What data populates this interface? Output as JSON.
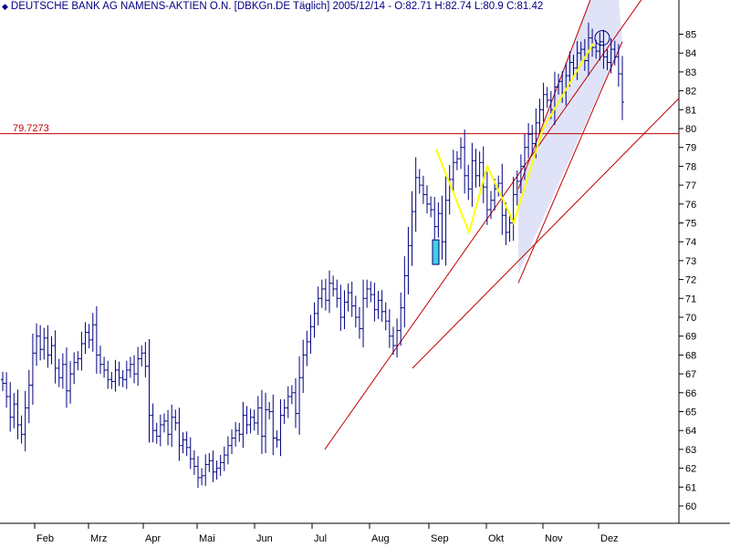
{
  "header": {
    "icon": "diamond-icon",
    "text": "DEUTSCHE BANK AG NAMENS-AKTIEN O.N. [DBKGn.DE  Täglich] 2005/12/14 - O:82.71 H:82.74 L:80.9 C:81.42"
  },
  "chart_data": {
    "type": "bar",
    "subtype": "ohlc",
    "symbol": "DBKGn.DE",
    "interval": "Täglich",
    "last_bar": {
      "date": "2005/12/14",
      "open": 82.71,
      "high": 82.74,
      "low": 80.9,
      "close": 81.42
    },
    "y_axis": {
      "position": "right",
      "min": 60,
      "max": 85,
      "ticks": [
        60,
        61,
        62,
        63,
        64,
        65,
        66,
        67,
        68,
        69,
        70,
        71,
        72,
        73,
        74,
        75,
        76,
        77,
        78,
        79,
        80,
        81,
        82,
        83,
        84,
        85
      ]
    },
    "x_axis": {
      "ticks": [
        "Feb",
        "Mrz",
        "Apr",
        "Mai",
        "Jun",
        "Jul",
        "Aug",
        "Sep",
        "Okt",
        "Nov",
        "Dez"
      ]
    },
    "grid": false,
    "bar_color": "#000080",
    "horizontal_line": {
      "value": 79.7273,
      "label": "79.7273",
      "color": "#c00000"
    },
    "closes": [
      66.5,
      65.8,
      64.7,
      65.4,
      64.3,
      63.8,
      65.2,
      66.4,
      68.1,
      69.0,
      68.3,
      68.9,
      68.0,
      68.5,
      67.3,
      66.8,
      67.5,
      66.1,
      67.0,
      67.6,
      67.8,
      68.6,
      69.2,
      68.8,
      69.6,
      68.0,
      67.5,
      67.2,
      66.7,
      66.6,
      67.2,
      66.8,
      66.7,
      67.2,
      67.5,
      67.0,
      67.8,
      68.1,
      67.4,
      64.8,
      64.0,
      63.7,
      64.3,
      64.5,
      63.8,
      64.7,
      64.4,
      63.2,
      63.5,
      63.1,
      62.5,
      62.1,
      61.5,
      61.6,
      62.2,
      62.4,
      61.8,
      62.0,
      62.3,
      62.7,
      63.2,
      63.6,
      64.0,
      63.8,
      64.8,
      64.3,
      64.7,
      64.4,
      65.2,
      63.7,
      65.1,
      65.0,
      63.6,
      63.5,
      64.8,
      65.2,
      65.8,
      66.0,
      64.9,
      66.8,
      68.0,
      68.7,
      69.5,
      70.2,
      71.0,
      71.5,
      70.9,
      71.8,
      71.5,
      71.0,
      70.0,
      70.8,
      71.3,
      70.6,
      70.0,
      69.4,
      71.0,
      71.5,
      71.2,
      70.4,
      70.9,
      70.3,
      69.8,
      69.0,
      68.5,
      69.3,
      70.5,
      72.2,
      73.8,
      75.6,
      77.4,
      77.0,
      76.5,
      76.0,
      75.7,
      74.8,
      75.5,
      74.0,
      76.2,
      77.3,
      78.2,
      78.4,
      79.0,
      77.5,
      76.8,
      78.3,
      77.5,
      78.2,
      76.9,
      75.7,
      76.2,
      76.8,
      77.1,
      75.4,
      74.5,
      75.0,
      76.5,
      77.2,
      78.0,
      79.0,
      79.7,
      79.2,
      80.3,
      81.0,
      81.8,
      81.5,
      81.0,
      82.2,
      82.5,
      81.9,
      82.8,
      83.5,
      83.2,
      84.0,
      84.2,
      83.6,
      84.8,
      84.3,
      84.1,
      84.6,
      83.8,
      83.5,
      84.2,
      83.8,
      82.9,
      81.4
    ],
    "annotations": [
      {
        "type": "trendline",
        "color": "#c00000",
        "from": {
          "x_label": "Jul",
          "y": 63.0
        },
        "to": {
          "x_label": "Dez",
          "y": 80.5
        }
      },
      {
        "type": "trendline",
        "color": "#c00000",
        "from": {
          "x_label": "Aug",
          "y": 67.3
        },
        "to": {
          "x_label": "Dez",
          "y": 79.8
        }
      },
      {
        "type": "channel",
        "color": "#c00000",
        "fill": "#dde0f7",
        "lower": {
          "from_y": 72.3,
          "to_y": 84.6
        },
        "upper": {
          "from_y": 76.8,
          "to_y": 90.0
        }
      },
      {
        "type": "m-pattern",
        "color": "#ffff00",
        "points": [
          78.9,
          74.5,
          78.0,
          75.0,
          80.0,
          84.5
        ]
      },
      {
        "type": "marker",
        "shape": "circle",
        "y": 84.8
      },
      {
        "type": "gap-box",
        "color": "#40d0e0",
        "from_y": 72.8,
        "to_y": 74.1
      }
    ]
  }
}
